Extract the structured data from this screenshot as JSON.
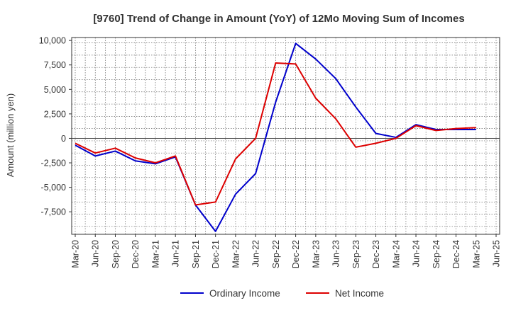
{
  "chart_data": {
    "type": "line",
    "title": "[9760]  Trend of Change in Amount (YoY) of 12Mo Moving Sum of Incomes",
    "xlabel": "",
    "ylabel": "Amount (million yen)",
    "ylim": [
      -9800,
      10300
    ],
    "yticks": [
      10000,
      7500,
      5000,
      2500,
      0,
      -2500,
      -5000,
      -7500
    ],
    "ytick_labels": [
      "10,000",
      "7,500",
      "5,000",
      "2,500",
      "0",
      "-2,500",
      "-5,000",
      "-7,500"
    ],
    "categories": [
      "Mar-20",
      "Jun-20",
      "Sep-20",
      "Dec-20",
      "Mar-21",
      "Jun-21",
      "Sep-21",
      "Dec-21",
      "Mar-22",
      "Jun-22",
      "Sep-22",
      "Dec-22",
      "Mar-23",
      "Jun-23",
      "Sep-23",
      "Dec-23",
      "Mar-24",
      "Jun-24",
      "Sep-24",
      "Dec-24",
      "Mar-25",
      "Jun-25"
    ],
    "grid": true,
    "legend_position": "bottom",
    "series": [
      {
        "name": "Ordinary Income",
        "color": "#0000cc",
        "values": [
          -700,
          -1800,
          -1300,
          -2300,
          -2600,
          -1900,
          -6800,
          -9500,
          -5700,
          -3600,
          3700,
          9700,
          8100,
          6100,
          3200,
          500,
          100,
          1400,
          900,
          900,
          900,
          null
        ]
      },
      {
        "name": "Net Income",
        "color": "#dd0000",
        "values": [
          -500,
          -1500,
          -1000,
          -2000,
          -2500,
          -1800,
          -6800,
          -6500,
          -2100,
          0,
          7700,
          7600,
          4100,
          2000,
          -900,
          -500,
          0,
          1300,
          800,
          1000,
          1100,
          null
        ]
      }
    ]
  }
}
